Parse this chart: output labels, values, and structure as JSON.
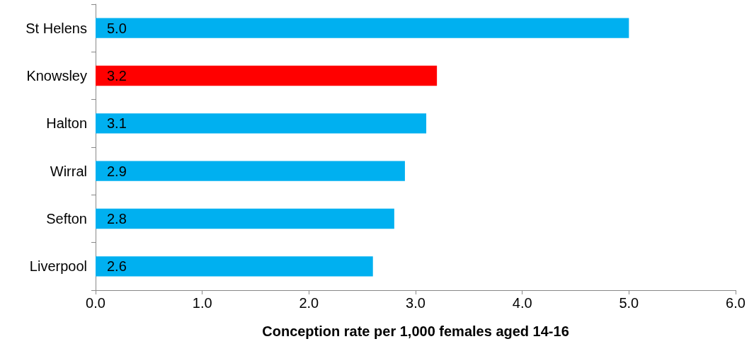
{
  "chart_data": {
    "type": "bar",
    "orientation": "horizontal",
    "xlabel": "Conception rate per 1,000 females aged 14-16",
    "categories": [
      "St Helens",
      "Knowsley",
      "Halton",
      "Wirral",
      "Sefton",
      "Liverpool"
    ],
    "values": [
      5.0,
      3.2,
      3.1,
      2.9,
      2.8,
      2.6
    ],
    "colors": [
      "#00b0f0",
      "#ff0000",
      "#00b0f0",
      "#00b0f0",
      "#00b0f0",
      "#00b0f0"
    ],
    "value_labels": [
      "5.0",
      "3.2",
      "3.1",
      "2.9",
      "2.8",
      "2.6"
    ],
    "xlim": [
      0,
      6
    ],
    "xticks": [
      {
        "value": 0,
        "label": "0.0"
      },
      {
        "value": 1,
        "label": "1.0"
      },
      {
        "value": 2,
        "label": "2.0"
      },
      {
        "value": 3,
        "label": "3.0"
      },
      {
        "value": 4,
        "label": "4.0"
      },
      {
        "value": 5,
        "label": "5.0"
      },
      {
        "value": 6,
        "label": "6.0"
      }
    ],
    "grid": false
  }
}
